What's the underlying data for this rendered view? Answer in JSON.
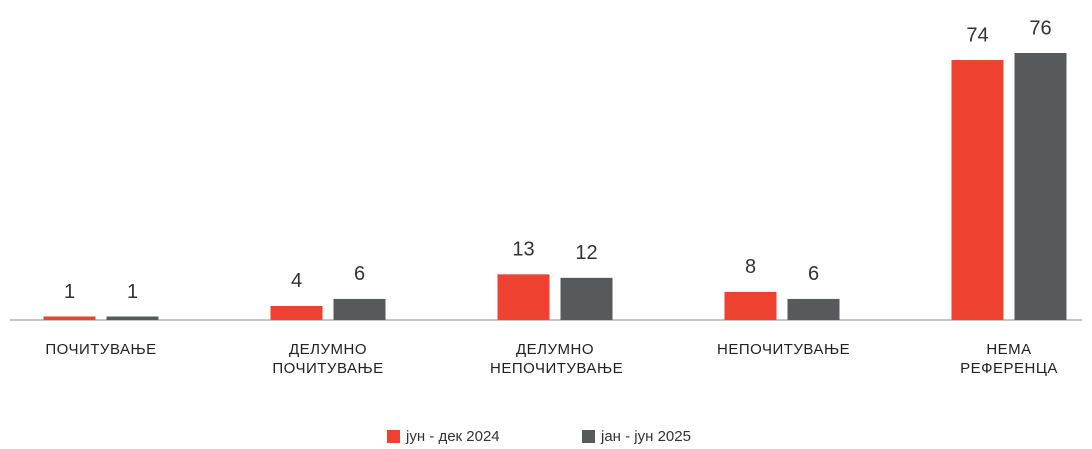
{
  "chart_data": {
    "type": "bar",
    "categories": [
      "ПОЧИТУВАЊЕ",
      "ДЕЛУМНО ПОЧИТУВАЊЕ",
      "ДЕЛУМНО НЕПОЧИТУВАЊЕ",
      "НЕПОЧИТУВАЊЕ",
      "НЕМА РЕФЕРЕНЦА"
    ],
    "series": [
      {
        "name": "јун - дек 2024",
        "color": "#ef4130",
        "values": [
          1,
          4,
          13,
          8,
          74
        ]
      },
      {
        "name": "јан - јун 2025",
        "color": "#58595b",
        "values": [
          1,
          6,
          12,
          6,
          76
        ]
      }
    ],
    "legend": "bottom"
  }
}
